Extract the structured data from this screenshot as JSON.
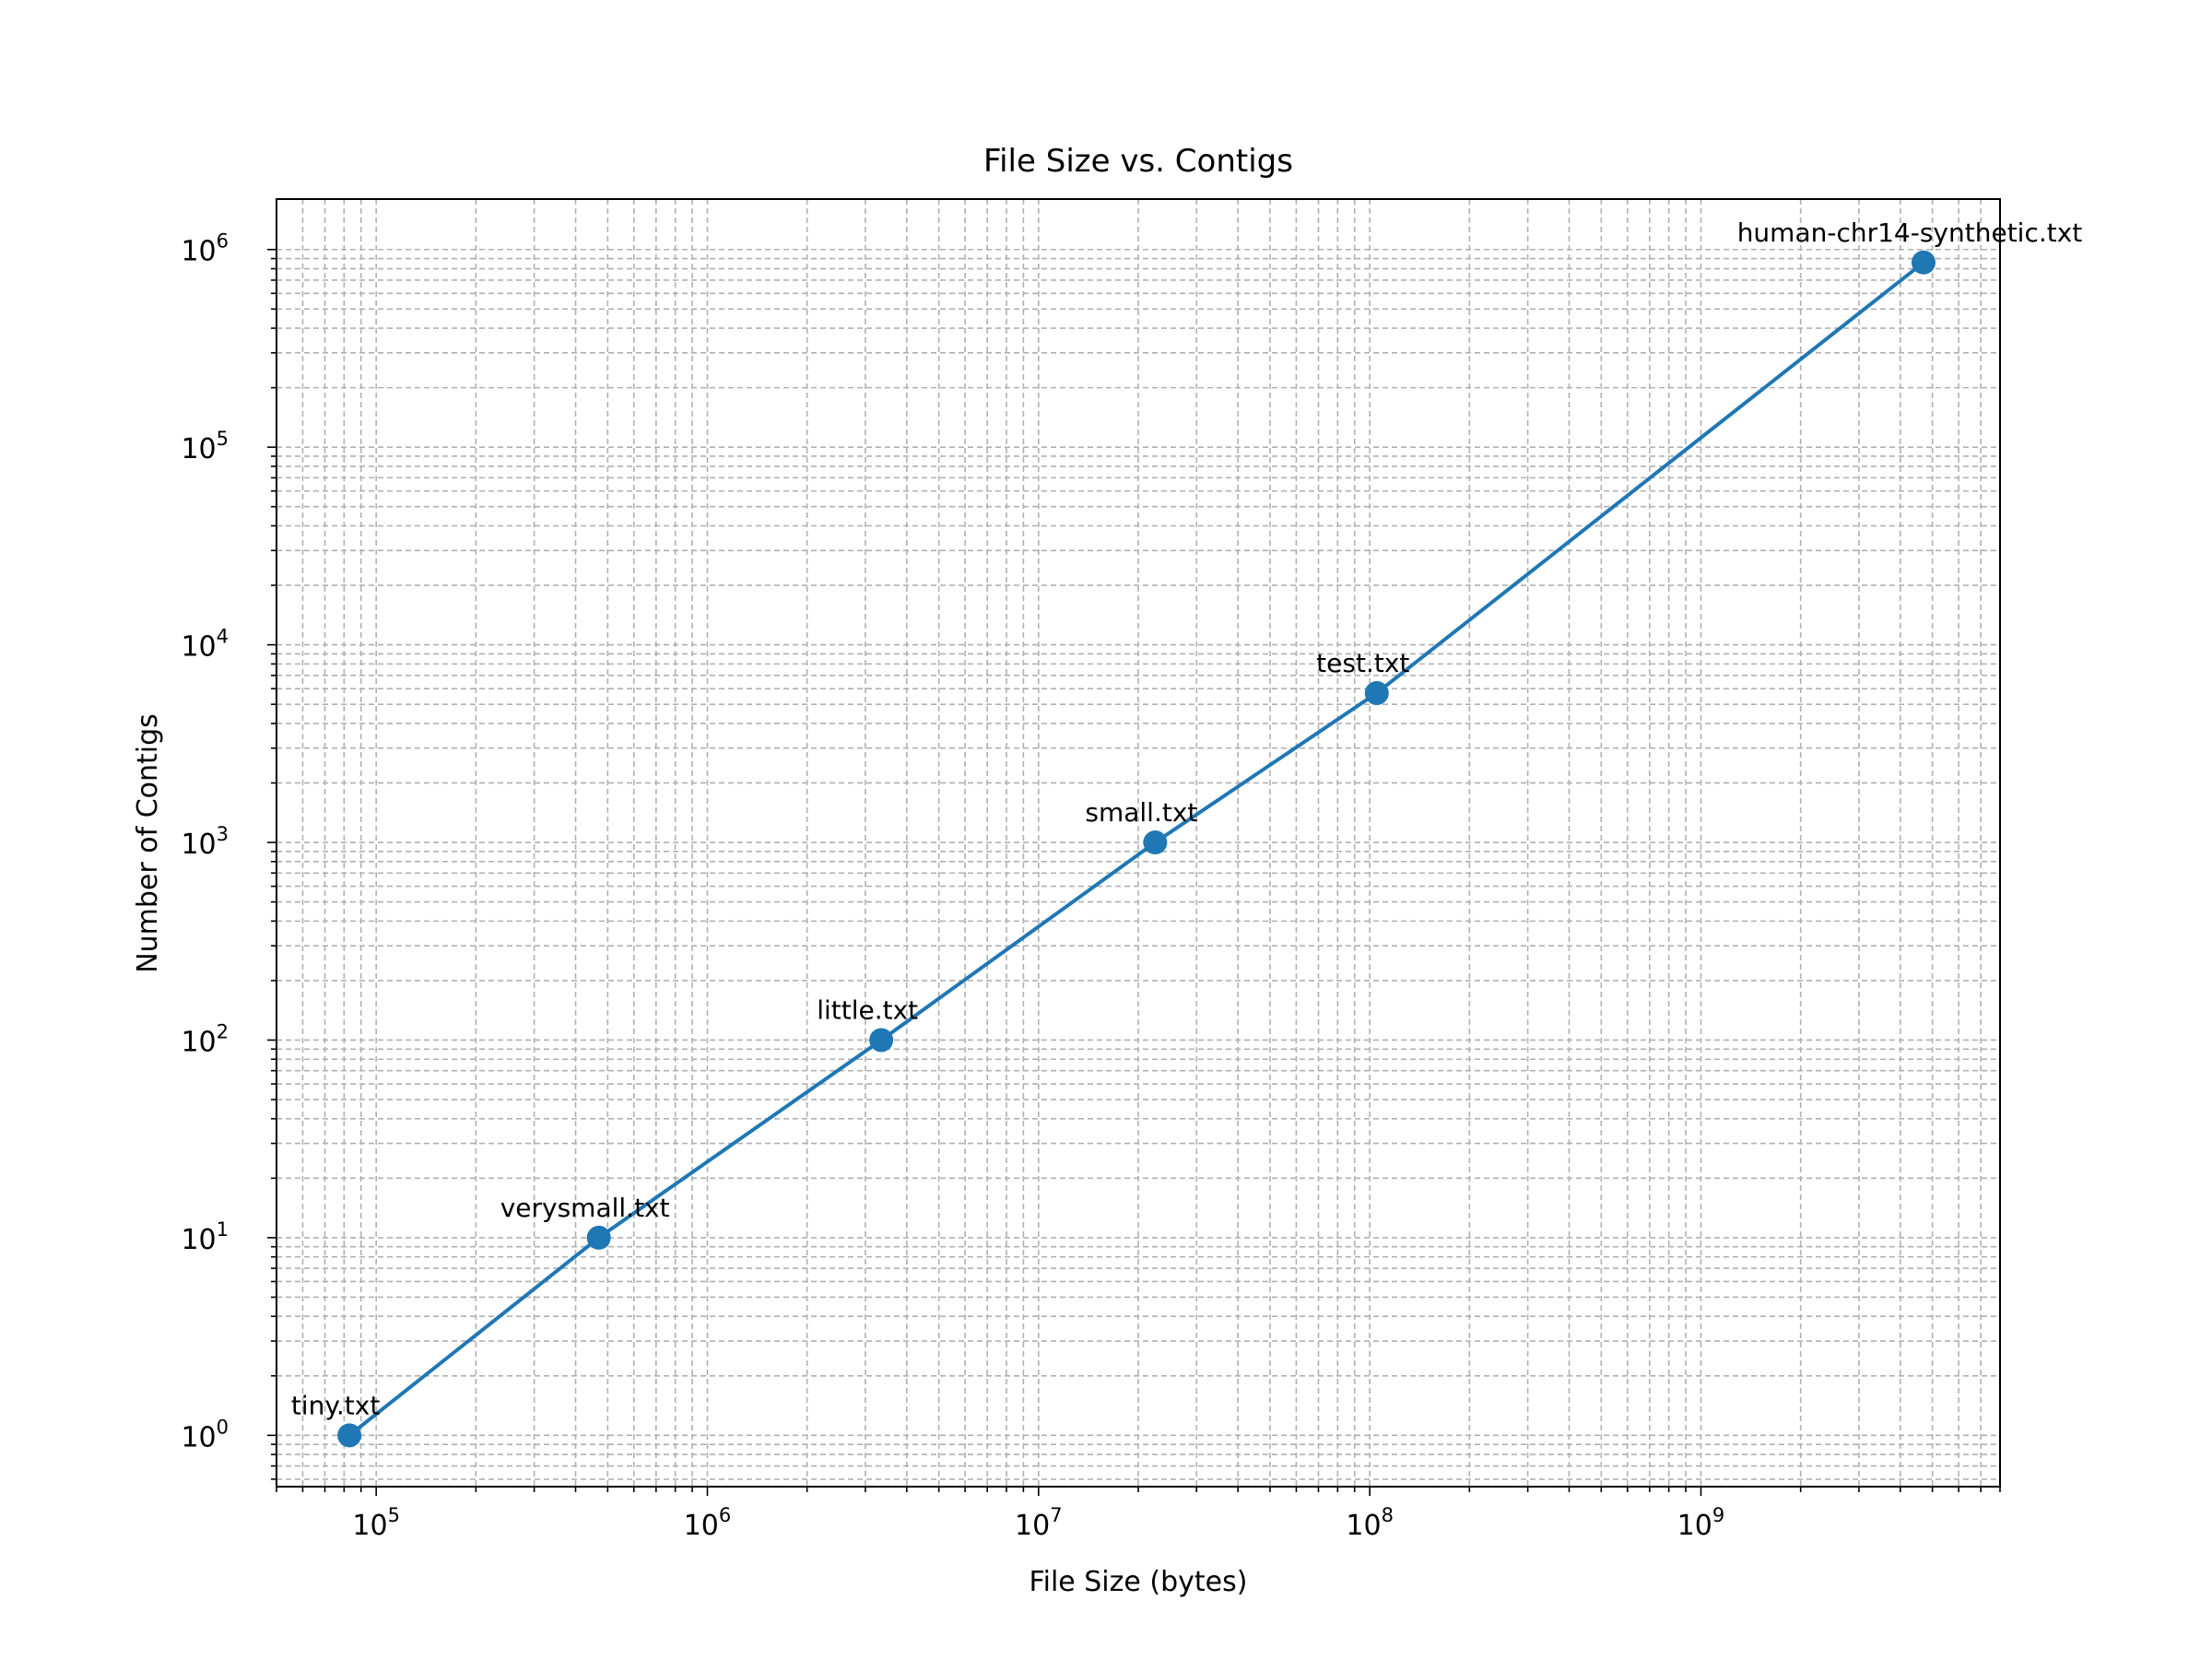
{
  "chart_data": {
    "type": "line",
    "title": "File Size vs. Contigs",
    "xlabel": "File Size (bytes)",
    "ylabel": "Number of Contigs",
    "x_scale": "log",
    "y_scale": "log",
    "xlim": [
      50000,
      8000000000
    ],
    "ylim": [
      0.55,
      1800000
    ],
    "grid": true,
    "grid_which": "both",
    "x_ticks": [
      {
        "base": "10",
        "exp": "5"
      },
      {
        "base": "10",
        "exp": "6"
      },
      {
        "base": "10",
        "exp": "7"
      },
      {
        "base": "10",
        "exp": "8"
      },
      {
        "base": "10",
        "exp": "9"
      }
    ],
    "y_ticks": [
      {
        "base": "10",
        "exp": "0"
      },
      {
        "base": "10",
        "exp": "1"
      },
      {
        "base": "10",
        "exp": "2"
      },
      {
        "base": "10",
        "exp": "3"
      },
      {
        "base": "10",
        "exp": "4"
      },
      {
        "base": "10",
        "exp": "5"
      },
      {
        "base": "10",
        "exp": "6"
      }
    ],
    "color": "#1f77b4",
    "marker": "circle",
    "points": [
      {
        "label": "tiny.txt",
        "x": 83000,
        "y": 1
      },
      {
        "label": "verysmall.txt",
        "x": 470000,
        "y": 10
      },
      {
        "label": "little.txt",
        "x": 3350000,
        "y": 100
      },
      {
        "label": "small.txt",
        "x": 22500000,
        "y": 1000
      },
      {
        "label": "test.txt",
        "x": 105000000,
        "y": 5700
      },
      {
        "label": "human-chr14-synthetic.txt",
        "x": 4700000000,
        "y": 860000
      }
    ]
  }
}
